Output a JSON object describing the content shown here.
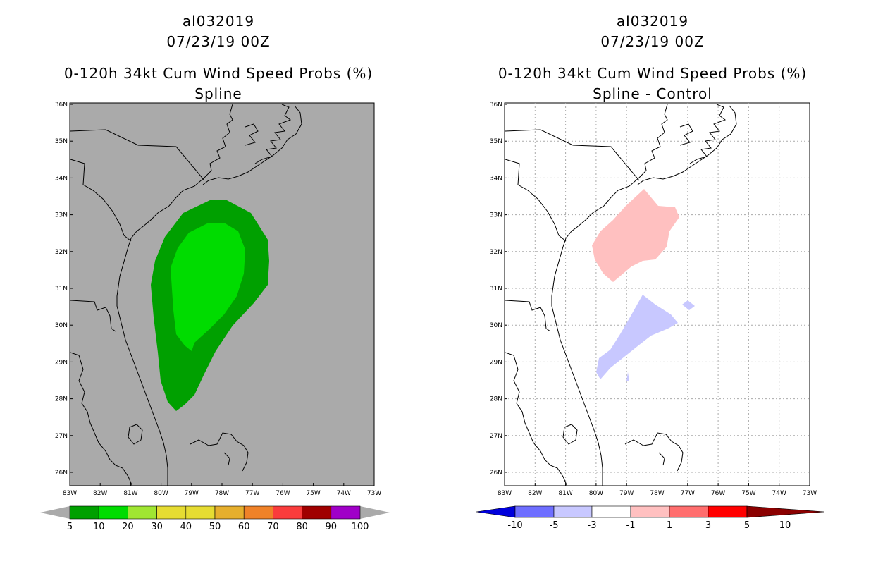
{
  "left_panel": {
    "title_line1": "al032019",
    "title_line2": "07/23/19 00Z",
    "title_line3": "0-120h 34kt Cum Wind Speed Probs (%)",
    "title_line4": "Spline",
    "map_background": "#aaaaaa",
    "colorbar_labels": [
      "5",
      "10",
      "20",
      "30",
      "40",
      "50",
      "60",
      "70",
      "80",
      "90",
      "100"
    ],
    "colorbar_colors": [
      "#00a000",
      "#00dc00",
      "#a0e632",
      "#e6dc32",
      "#e6dc32",
      "#e6af2d",
      "#f08228",
      "#fa3c3c",
      "#a00000",
      "#a000c8"
    ]
  },
  "right_panel": {
    "title_line1": "al032019",
    "title_line2": "07/23/19 00Z",
    "title_line3": "0-120h 34kt Cum Wind Speed Probs (%)",
    "title_line4": "Spline - Control",
    "map_background": "#ffffff",
    "colorbar_labels": [
      "-10",
      "-5",
      "-3",
      "-1",
      "1",
      "3",
      "5",
      "10"
    ],
    "colorbar_colors": [
      "#0000dc",
      "#6e6eff",
      "#c8c8ff",
      "#ffffff",
      "#ffc0c0",
      "#ff6e6e",
      "#ff0000",
      "#8b0000"
    ]
  },
  "axes": {
    "lon_labels": [
      "83W",
      "82W",
      "81W",
      "80W",
      "79W",
      "78W",
      "77W",
      "76W",
      "75W",
      "74W",
      "73W"
    ],
    "lat_labels": [
      "36N",
      "35N",
      "34N",
      "33N",
      "32N",
      "31N",
      "30N",
      "29N",
      "28N",
      "27N",
      "26N"
    ]
  }
}
